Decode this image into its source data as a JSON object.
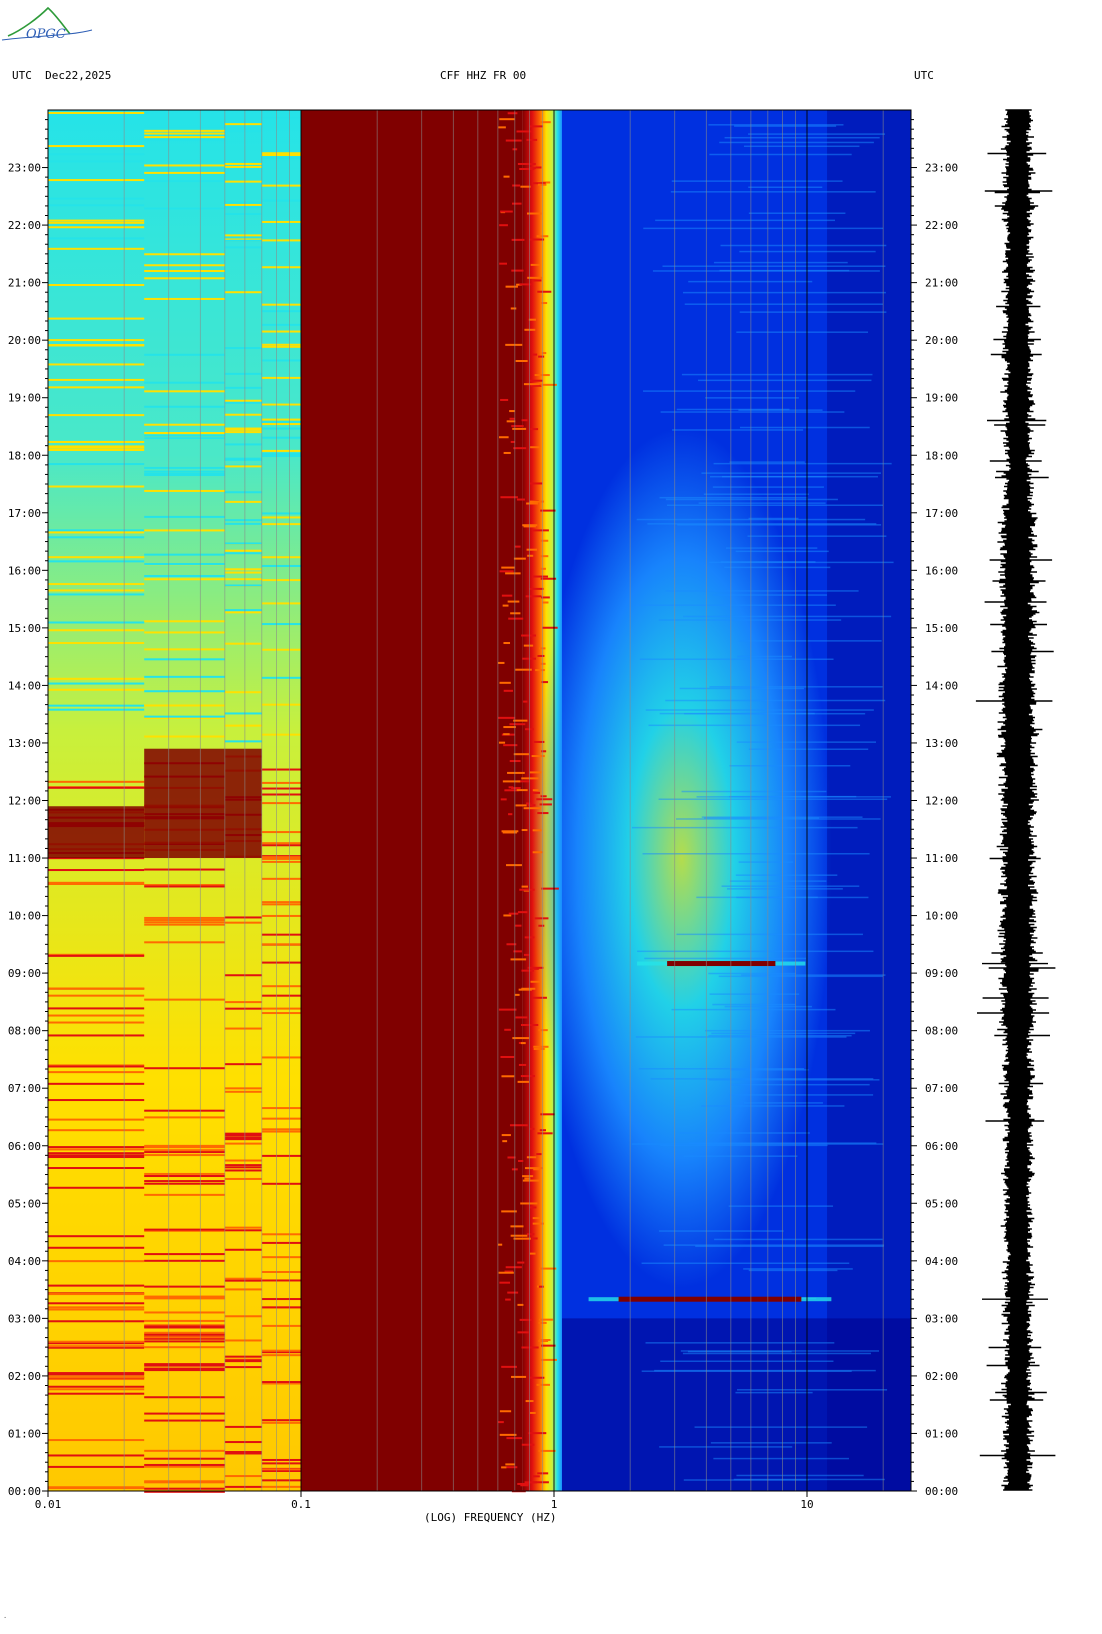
{
  "header": {
    "timezone_left": "UTC",
    "date": "Dec22,2025",
    "station": "CFF HHZ FR 00",
    "timezone_right": "UTC"
  },
  "logo": {
    "text": "OPGC",
    "colors": {
      "arc": "#2e9b3a",
      "text": "#2f5fb5"
    }
  },
  "footer_mark": ".",
  "chart_data": {
    "type": "heatmap",
    "title": "CFF HHZ FR 00",
    "xlabel": "(LOG) FREQUENCY (HZ)",
    "ylabel": "UTC",
    "x_scale": "log",
    "xlim": [
      0.01,
      25
    ],
    "ylim_hours": [
      0,
      24
    ],
    "x_tick_labels": [
      {
        "value": 0.01,
        "label": "0.01"
      },
      {
        "value": 0.1,
        "label": "0.1"
      },
      {
        "value": 1,
        "label": "1"
      },
      {
        "value": 10,
        "label": "10"
      }
    ],
    "y_tick_labels": [
      "00:00",
      "01:00",
      "02:00",
      "03:00",
      "04:00",
      "05:00",
      "06:00",
      "07:00",
      "08:00",
      "09:00",
      "10:00",
      "11:00",
      "12:00",
      "13:00",
      "14:00",
      "15:00",
      "16:00",
      "17:00",
      "18:00",
      "19:00",
      "20:00",
      "21:00",
      "22:00",
      "23:00"
    ],
    "colormap": [
      "#00008a",
      "#0030e0",
      "#1a8cff",
      "#25e3e8",
      "#c8f03c",
      "#ffe000",
      "#ff6a00",
      "#e01010",
      "#800000"
    ],
    "band_notes": [
      {
        "f_min": 0.1,
        "f_max": 0.75,
        "level": "saturated"
      },
      {
        "f_min": 0.75,
        "f_max": 1.0,
        "level": "transition"
      },
      {
        "f_min": 1.0,
        "f_max": 25,
        "level": "low"
      }
    ],
    "events": [
      {
        "time": "09:10",
        "f_min": 2.8,
        "f_max": 7.5
      },
      {
        "time": "03:20",
        "f_min": 1.8,
        "f_max": 9.5
      }
    ],
    "side_panel": "waveform trace"
  }
}
